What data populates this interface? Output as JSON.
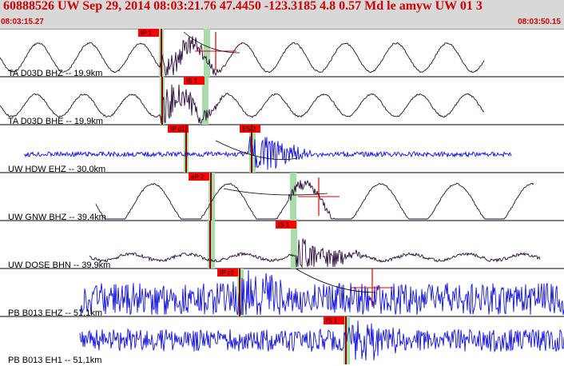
{
  "header": {
    "title": "60888526 UW Sep 29, 2014 08:03:21.76   47.4450 -123.3185  4.8 0.57 Md le amyw UW 01   3",
    "start_time": "08:03:15.27",
    "end_time": "08:03:50.15"
  },
  "colors": {
    "header_bg": "#d8d8d8",
    "header_text": "#d00000",
    "trace_dark": "#2a0a3a",
    "trace_blue": "#1010e0",
    "pick_bar": "#a8dca8",
    "pick_tag": "#ff0000",
    "pick_line": "#8b0000"
  },
  "traces": [
    {
      "label": "TA D03D BHZ -- 19,9km",
      "color": "dark",
      "start": 0,
      "picks": [
        {
          "tag": "IP 1",
          "marker": "green"
        },
        {
          "tag": "",
          "marker": "green"
        }
      ]
    },
    {
      "label": "TA D03D BHE -- 19,9km",
      "color": "dark",
      "start": 0,
      "picks": [
        {
          "tag": "IS 1",
          "marker": "green"
        }
      ]
    },
    {
      "label": "UW HDW EHZ -- 30,0km",
      "color": "blue",
      "start": 0,
      "picks": [
        {
          "tag": "IP d1",
          "marker": "green"
        },
        {
          "tag": "ES 2",
          "marker": "green"
        }
      ]
    },
    {
      "label": "UW GNW BHZ -- 39,4km",
      "color": "dark",
      "start": 0,
      "picks": [
        {
          "tag": "eP 2",
          "marker": "green"
        }
      ]
    },
    {
      "label": "UW DOSE BHN -- 39,9km",
      "color": "dark",
      "start": 0,
      "picks": [
        {
          "tag": "IS 1",
          "marker": "green"
        }
      ]
    },
    {
      "label": "PB B013 EHZ -- 51,1km",
      "color": "blue",
      "start": 0,
      "picks": [
        {
          "tag": "IP c1",
          "marker": "green"
        }
      ]
    },
    {
      "label": "PB B013 EH1 -- 51,1km",
      "color": "blue",
      "start": 0,
      "picks": [
        {
          "tag": "IS 1",
          "marker": "green"
        }
      ]
    }
  ]
}
